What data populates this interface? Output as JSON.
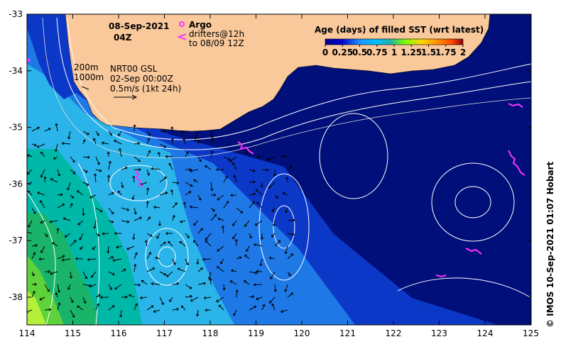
{
  "title": {
    "date": "08-Sep-2021",
    "time": "04Z"
  },
  "legend_argo": {
    "argo_label": "Argo",
    "drifters_label": "drifters@12h",
    "drifters_sub": "to 08/09 12Z",
    "argo_color": "#ff33ff"
  },
  "depth_labels": {
    "contour_200": "200m",
    "contour_1000": "1000m"
  },
  "product": {
    "name": "NRT00 GSL",
    "date": "02-Sep 00:00Z",
    "scale": "0.5m/s (1kt 24h)"
  },
  "colorbar": {
    "title": "Age (days) of filled SST (wrt latest)",
    "ticks": [
      "0",
      "0.25",
      "0.5",
      "0.75",
      "1",
      "1.25",
      "1.5",
      "1.75",
      "2"
    ],
    "colors": [
      "#00008b",
      "#0000cd",
      "#1e90ff",
      "#00bfff",
      "#00ced1",
      "#20b2aa",
      "#3cb371",
      "#7cfc00",
      "#ffd700",
      "#ff8c00",
      "#ff4500",
      "#8b0000"
    ]
  },
  "axes": {
    "lon_ticks": [
      "114",
      "115",
      "116",
      "117",
      "118",
      "119",
      "120",
      "121",
      "122",
      "123",
      "124",
      "125"
    ],
    "lat_ticks": [
      "-33",
      "-34",
      "-35",
      "-36",
      "-37",
      "-38"
    ]
  },
  "colors": {
    "land": "#f9c89b",
    "deep": "#000f7a",
    "ocean_blue": "#0c38c8",
    "mid_blue": "#1e78e6",
    "light_blue": "#2ab4ea",
    "teal": "#00b8a8",
    "green": "#19b46a",
    "bright_green": "#5ed23a",
    "lime": "#b4f03a"
  },
  "credit": "© IMOS 10-Sep-2021 01:07 Hobart"
}
